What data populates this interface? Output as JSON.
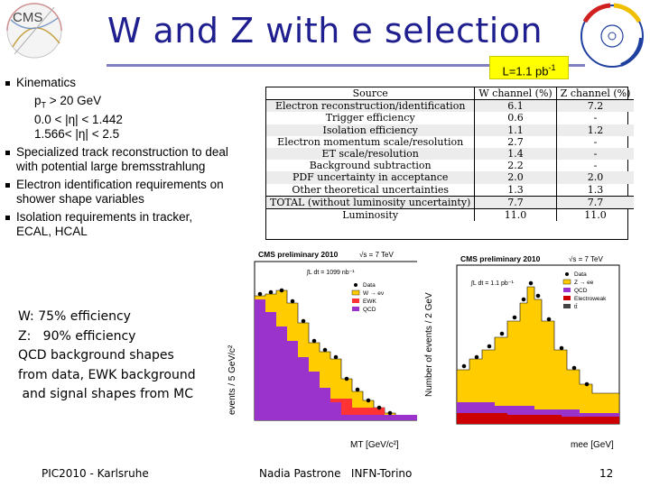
{
  "slide": {
    "title": "W and Z with e selection",
    "lumi_label": "L=1.1 pb",
    "lumi_sup": "-1",
    "cms_logo_text": "CMS",
    "footer_left": "PIC2010 - Karlsruhe",
    "footer_mid": "Nadia Pastrone   INFN-Torino",
    "page_number": "12"
  },
  "bullets": [
    {
      "text": "Kinematics",
      "sub": [
        "pT > 20 GeV",
        "0.0 < |η| < 1.442",
        "1.566< |η| < 2.5"
      ]
    },
    {
      "text": "Specialized track reconstruction to deal with potential large bremsstrahlung",
      "sub": []
    },
    {
      "text": "Electron identification requirements on shower shape variables",
      "sub": []
    },
    {
      "text": "Isolation requirements in tracker, ECAL, HCAL",
      "sub": []
    }
  ],
  "notes": [
    "W: 75% efficiency",
    "Z:   90% efficiency",
    "QCD background shapes",
    "from data, EWK background",
    " and signal shapes from MC"
  ],
  "table": {
    "headers": [
      "Source",
      "W channel (%)",
      "Z channel (%)"
    ],
    "rows": [
      [
        "Electron reconstruction/identification",
        "6.1",
        "7.2"
      ],
      [
        "Trigger efficiency",
        "0.6",
        "-"
      ],
      [
        "Isolation efficiency",
        "1.1",
        "1.2"
      ],
      [
        "Electron momentum scale/resolution",
        "2.7",
        "-"
      ],
      [
        "ET scale/resolution",
        "1.4",
        "-"
      ],
      [
        "Background subtraction",
        "2.2",
        "-"
      ],
      [
        "PDF uncertainty in acceptance",
        "2.0",
        "2.0"
      ],
      [
        "Other theoretical uncertainties",
        "1.3",
        "1.3"
      ]
    ],
    "total": [
      "TOTAL (without luminosity uncertainty)",
      "7.7",
      "7.7"
    ],
    "luminosity": [
      "Luminosity",
      "11.0",
      "11.0"
    ]
  },
  "plot_w": {
    "header": "CMS preliminary 2010",
    "sqrt_s": "√s = 7 TeV",
    "lumi": "∫L dt = 1099 nb⁻¹",
    "ylabel": "events / 5 GeV/c²",
    "xlabel": "MT [GeV/c²]",
    "legend": [
      "Data",
      "W → eν",
      "EWK",
      "QCD"
    ],
    "colors": {
      "signal": "#ffcc00",
      "ewk": "#ff3333",
      "qcd": "#9933cc",
      "data": "#000000"
    }
  },
  "plot_z": {
    "header": "CMS preliminary 2010",
    "sqrt_s": "√s = 7 TeV",
    "lumi": "∫L dt = 1.1 pb⁻¹",
    "ylabel": "Number of events / 2 GeV",
    "xlabel": "mee [GeV]",
    "legend": [
      "Data",
      "Z → ee",
      "QCD",
      "Electroweak",
      "tt̄"
    ],
    "colors": {
      "signal": "#ffcc00",
      "ewk": "#cc0000",
      "qcd": "#9933cc",
      "data": "#000000"
    }
  }
}
